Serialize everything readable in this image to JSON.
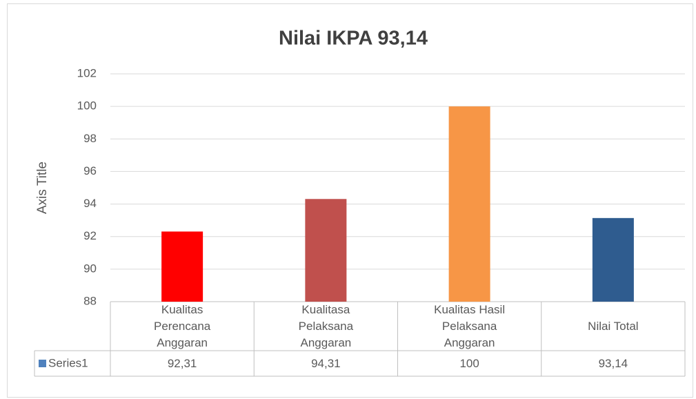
{
  "chart_data": {
    "type": "bar",
    "title": "Nilai  IKPA 93,14",
    "y_axis_label": "Axis Title",
    "categories": [
      "Kualitas Perencana Anggaran",
      "Kualitasa Pelaksana Anggaran",
      "Kualitas Hasil Pelaksana Anggaran",
      "Nilai Total"
    ],
    "series": [
      {
        "name": "Series1",
        "color": "#4f81bd",
        "colors": [
          "#ff0000",
          "#c0504d",
          "#f79646",
          "#2f5c8f"
        ],
        "values": [
          92.31,
          94.31,
          100,
          93.14
        ],
        "value_labels": [
          "92,31",
          "94,31",
          "100",
          "93,14"
        ]
      }
    ],
    "ylim": [
      88,
      102
    ],
    "yticks": [
      88,
      90,
      92,
      94,
      96,
      98,
      100,
      102
    ],
    "grid": true
  }
}
